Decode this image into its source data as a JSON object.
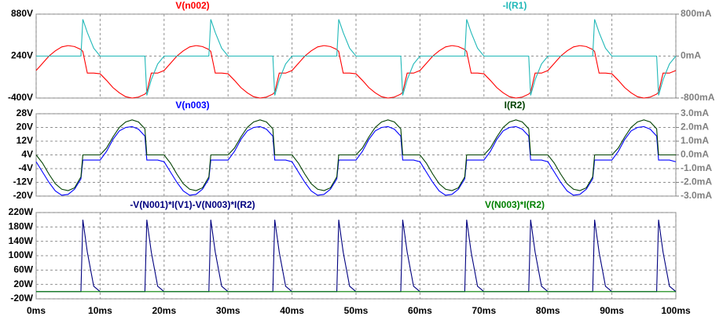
{
  "chart_data": [
    {
      "type": "line",
      "x": [
        0,
        1,
        2,
        3,
        4,
        5,
        6,
        7,
        7.3,
        8,
        9,
        10,
        11,
        12,
        13,
        14,
        15,
        16,
        17,
        17.3,
        18,
        19,
        20,
        21,
        22,
        23,
        24,
        25,
        26,
        27,
        27.3,
        28,
        29,
        30,
        31,
        32,
        33,
        34,
        35,
        36,
        37,
        37.3,
        38,
        39,
        40,
        41,
        42,
        43,
        44,
        45,
        46,
        47,
        47.3,
        48,
        49,
        50,
        51,
        52,
        53,
        54,
        55,
        56,
        57,
        57.3,
        58,
        59,
        60,
        61,
        62,
        63,
        64,
        65,
        66,
        67,
        67.3,
        68,
        69,
        70,
        71,
        72,
        73,
        74,
        75,
        76,
        77,
        77.3,
        78,
        79,
        80,
        81,
        82,
        83,
        84,
        85,
        86,
        87,
        87.3,
        88,
        89,
        90,
        91,
        92,
        93,
        94,
        95,
        96,
        97,
        97.3,
        98,
        99,
        100
      ],
      "series": [
        {
          "name": "V(n002)",
          "color": "#ff0000",
          "values": [
            20,
            130,
            240,
            320,
            380,
            400,
            385,
            340,
            310,
            -20,
            -20,
            -30,
            -130,
            -240,
            -320,
            -380,
            -400,
            -385,
            -340,
            -310,
            -20,
            -20,
            20,
            130,
            240,
            320,
            380,
            400,
            385,
            340,
            310,
            -20,
            -20,
            -30,
            -130,
            -240,
            -320,
            -380,
            -400,
            -385,
            -340,
            -310,
            -20,
            -20,
            20,
            130,
            240,
            320,
            380,
            400,
            385,
            340,
            310,
            -20,
            -20,
            -30,
            -130,
            -240,
            -320,
            -380,
            -400,
            -385,
            -340,
            -310,
            -20,
            -20,
            20,
            130,
            240,
            320,
            380,
            400,
            385,
            340,
            310,
            -20,
            -20,
            -30,
            -130,
            -240,
            -320,
            -380,
            -400,
            -385,
            -340,
            -310,
            -20,
            -20,
            20,
            130,
            240,
            320,
            380,
            400,
            385,
            340,
            310,
            -20,
            -20,
            -30,
            -130,
            -240,
            -320,
            -380,
            -400,
            -385,
            -340,
            -310,
            -20,
            -20,
            20
          ]
        },
        {
          "name": "-I(R1)",
          "color": "#20b8b8",
          "axis": "y2",
          "values": [
            0,
            0,
            0,
            0,
            0,
            0,
            0,
            0,
            700,
            450,
            150,
            0,
            0,
            0,
            0,
            0,
            0,
            0,
            0,
            -750,
            -450,
            -150,
            0,
            0,
            0,
            0,
            0,
            0,
            0,
            0,
            700,
            450,
            150,
            0,
            0,
            0,
            0,
            0,
            0,
            0,
            0,
            -750,
            -450,
            -150,
            0,
            0,
            0,
            0,
            0,
            0,
            0,
            0,
            700,
            450,
            150,
            0,
            0,
            0,
            0,
            0,
            0,
            0,
            0,
            -750,
            -450,
            -150,
            0,
            0,
            0,
            0,
            0,
            0,
            0,
            0,
            700,
            450,
            150,
            0,
            0,
            0,
            0,
            0,
            0,
            0,
            0,
            -750,
            -450,
            -150,
            0,
            0,
            0,
            0,
            0,
            0,
            0,
            0,
            700,
            450,
            150,
            0,
            0,
            0,
            0,
            0,
            0,
            0,
            0,
            -750,
            -450,
            -150,
            0
          ]
        }
      ],
      "ylim": [
        -400,
        880
      ],
      "yticks": [
        {
          "value": 880,
          "label": "880V"
        },
        {
          "value": 240,
          "label": "240V"
        },
        {
          "value": -400,
          "label": "-400V"
        }
      ],
      "y2lim": [
        -800,
        800
      ],
      "y2ticks": [
        {
          "value": 800,
          "label": "800mA"
        },
        {
          "value": 0,
          "label": "0mA"
        },
        {
          "value": -800,
          "label": "-800mA"
        }
      ],
      "grid": true
    },
    {
      "type": "line",
      "x": [
        0,
        1,
        2,
        3,
        4,
        5,
        6,
        7,
        7.3,
        8,
        9,
        10,
        11,
        12,
        13,
        14,
        15,
        16,
        17,
        17.3,
        18,
        19,
        20,
        21,
        22,
        23,
        24,
        25,
        26,
        27,
        27.3,
        28,
        29,
        30,
        31,
        32,
        33,
        34,
        35,
        36,
        37,
        37.3,
        38,
        39,
        40,
        41,
        42,
        43,
        44,
        45,
        46,
        47,
        47.3,
        48,
        49,
        50,
        51,
        52,
        53,
        54,
        55,
        56,
        57,
        57.3,
        58,
        59,
        60,
        61,
        62,
        63,
        64,
        65,
        66,
        67,
        67.3,
        68,
        69,
        70,
        71,
        72,
        73,
        74,
        75,
        76,
        77,
        77.3,
        78,
        79,
        80,
        81,
        82,
        83,
        84,
        85,
        86,
        87,
        87.3,
        88,
        89,
        90,
        91,
        92,
        93,
        94,
        95,
        96,
        97,
        97.3,
        98,
        99,
        100
      ],
      "series": [
        {
          "name": "V(n003)",
          "color": "#0000ff",
          "values": [
            0,
            -6,
            -12,
            -17,
            -19.5,
            -19,
            -16,
            -10,
            1,
            1,
            1,
            1,
            6,
            13,
            18,
            20,
            20.5,
            19,
            15,
            1,
            1,
            1,
            0,
            -6,
            -12,
            -17,
            -19.5,
            -19,
            -16,
            -10,
            1,
            1,
            1,
            1,
            6,
            13,
            18,
            20,
            20.5,
            19,
            15,
            1,
            1,
            1,
            0,
            -6,
            -12,
            -17,
            -19.5,
            -19,
            -16,
            -10,
            1,
            1,
            1,
            1,
            6,
            13,
            18,
            20,
            20.5,
            19,
            15,
            1,
            1,
            1,
            0,
            -6,
            -12,
            -17,
            -19.5,
            -19,
            -16,
            -10,
            1,
            1,
            1,
            1,
            6,
            13,
            18,
            20,
            20.5,
            19,
            15,
            1,
            1,
            1,
            0,
            -6,
            -12,
            -17,
            -19.5,
            -19,
            -16,
            -10,
            1,
            1,
            1,
            1,
            6,
            13,
            18,
            20,
            20.5,
            19,
            15,
            1,
            1,
            1,
            0
          ]
        },
        {
          "name": "I(R2)",
          "color": "#004000",
          "axis": "y2",
          "values": [
            0,
            -0.6,
            -1.4,
            -2.1,
            -2.5,
            -2.6,
            -2.4,
            -1.6,
            0,
            0,
            0,
            0,
            0.5,
            1.3,
            2,
            2.4,
            2.55,
            2.4,
            1.9,
            0,
            0,
            0,
            0,
            -0.6,
            -1.4,
            -2.1,
            -2.5,
            -2.6,
            -2.4,
            -1.6,
            0,
            0,
            0,
            0,
            0.5,
            1.3,
            2,
            2.4,
            2.55,
            2.4,
            1.9,
            0,
            0,
            0,
            0,
            -0.6,
            -1.4,
            -2.1,
            -2.5,
            -2.6,
            -2.4,
            -1.6,
            0,
            0,
            0,
            0,
            0.5,
            1.3,
            2,
            2.4,
            2.55,
            2.4,
            1.9,
            0,
            0,
            0,
            0,
            -0.6,
            -1.4,
            -2.1,
            -2.5,
            -2.6,
            -2.4,
            -1.6,
            0,
            0,
            0,
            0,
            0.5,
            1.3,
            2,
            2.4,
            2.55,
            2.4,
            1.9,
            0,
            0,
            0,
            0,
            -0.6,
            -1.4,
            -2.1,
            -2.5,
            -2.6,
            -2.4,
            -1.6,
            0,
            0,
            0,
            0,
            0.5,
            1.3,
            2,
            2.4,
            2.55,
            2.4,
            1.9,
            0,
            0,
            0,
            0
          ]
        }
      ],
      "ylim": [
        -20,
        28
      ],
      "yticks": [
        {
          "value": 28,
          "label": "28V"
        },
        {
          "value": 20,
          "label": "20V"
        },
        {
          "value": 12,
          "label": "12V"
        },
        {
          "value": 4,
          "label": "4V"
        },
        {
          "value": -4,
          "label": "-4V"
        },
        {
          "value": -12,
          "label": "-12V"
        },
        {
          "value": -20,
          "label": "-20V"
        }
      ],
      "y2lim": [
        -3,
        3
      ],
      "y2ticks": [
        {
          "value": 3,
          "label": "3.0mA"
        },
        {
          "value": 2,
          "label": "2.0mA"
        },
        {
          "value": 1,
          "label": "1.0mA"
        },
        {
          "value": 0,
          "label": "0.0mA"
        },
        {
          "value": -1,
          "label": "-1.0mA"
        },
        {
          "value": -2,
          "label": "-2.0mA"
        },
        {
          "value": -3,
          "label": "-3.0mA"
        }
      ],
      "grid": true
    },
    {
      "type": "line",
      "x": [
        0,
        1,
        2,
        3,
        4,
        5,
        6,
        7,
        7.3,
        8,
        9,
        10,
        11,
        12,
        13,
        14,
        15,
        16,
        17,
        17.3,
        18,
        19,
        20,
        21,
        22,
        23,
        24,
        25,
        26,
        27,
        27.3,
        28,
        29,
        30,
        31,
        32,
        33,
        34,
        35,
        36,
        37,
        37.3,
        38,
        39,
        40,
        41,
        42,
        43,
        44,
        45,
        46,
        47,
        47.3,
        48,
        49,
        50,
        51,
        52,
        53,
        54,
        55,
        56,
        57,
        57.3,
        58,
        59,
        60,
        61,
        62,
        63,
        64,
        65,
        66,
        67,
        67.3,
        68,
        69,
        70,
        71,
        72,
        73,
        74,
        75,
        76,
        77,
        77.3,
        78,
        79,
        80,
        81,
        82,
        83,
        84,
        85,
        86,
        87,
        87.3,
        88,
        89,
        90,
        91,
        92,
        93,
        94,
        95,
        96,
        97,
        97.3,
        98,
        99,
        100
      ],
      "series": [
        {
          "name": "-V(N001)*I(V1)-V(N003)*I(R2)",
          "color": "#00007f",
          "values": [
            0,
            0,
            0,
            0,
            0,
            0,
            0,
            0,
            200,
            110,
            15,
            0,
            0,
            0,
            0,
            0,
            0,
            0,
            0,
            200,
            110,
            15,
            0,
            0,
            0,
            0,
            0,
            0,
            0,
            0,
            200,
            110,
            15,
            0,
            0,
            0,
            0,
            0,
            0,
            0,
            0,
            200,
            110,
            15,
            0,
            0,
            0,
            0,
            0,
            0,
            0,
            0,
            200,
            110,
            15,
            0,
            0,
            0,
            0,
            0,
            0,
            0,
            0,
            200,
            110,
            15,
            0,
            0,
            0,
            0,
            0,
            0,
            0,
            0,
            200,
            110,
            15,
            0,
            0,
            0,
            0,
            0,
            0,
            0,
            0,
            200,
            110,
            15,
            0,
            0,
            0,
            0,
            0,
            0,
            0,
            0,
            200,
            110,
            15,
            0,
            0,
            0,
            0,
            0,
            0,
            0,
            0,
            200,
            110,
            15,
            0
          ]
        },
        {
          "name": "V(N003)*I(R2)",
          "color": "#008000",
          "values": [
            0,
            0,
            0,
            0,
            0.05,
            0.05,
            0,
            0,
            0,
            0,
            0,
            0,
            0,
            0,
            0,
            0.05,
            0.05,
            0,
            0,
            0,
            0,
            0,
            0,
            0,
            0,
            0,
            0.05,
            0.05,
            0,
            0,
            0,
            0,
            0,
            0,
            0,
            0,
            0,
            0.05,
            0.05,
            0,
            0,
            0,
            0,
            0,
            0,
            0,
            0,
            0,
            0.05,
            0.05,
            0,
            0,
            0,
            0,
            0,
            0,
            0,
            0,
            0,
            0.05,
            0.05,
            0,
            0,
            0,
            0,
            0,
            0,
            0,
            0,
            0,
            0.05,
            0.05,
            0,
            0,
            0,
            0,
            0,
            0,
            0,
            0,
            0,
            0.05,
            0.05,
            0,
            0,
            0,
            0,
            0,
            0,
            0,
            0,
            0,
            0.05,
            0.05,
            0,
            0,
            0,
            0,
            0,
            0,
            0,
            0,
            0,
            0.05,
            0.05,
            0,
            0,
            0,
            0,
            0,
            0
          ]
        }
      ],
      "xlim": [
        0,
        100
      ],
      "xticks": [
        {
          "value": 0,
          "label": "0ms"
        },
        {
          "value": 10,
          "label": "10ms"
        },
        {
          "value": 20,
          "label": "20ms"
        },
        {
          "value": 30,
          "label": "30ms"
        },
        {
          "value": 40,
          "label": "40ms"
        },
        {
          "value": 50,
          "label": "50ms"
        },
        {
          "value": 60,
          "label": "60ms"
        },
        {
          "value": 70,
          "label": "70ms"
        },
        {
          "value": 80,
          "label": "80ms"
        },
        {
          "value": 90,
          "label": "90ms"
        },
        {
          "value": 100,
          "label": "100ms"
        }
      ],
      "ylim": [
        -20,
        220
      ],
      "yticks": [
        {
          "value": 220,
          "label": "220W"
        },
        {
          "value": 180,
          "label": "180W"
        },
        {
          "value": 140,
          "label": "140W"
        },
        {
          "value": 100,
          "label": "100W"
        },
        {
          "value": 60,
          "label": "60W"
        },
        {
          "value": 20,
          "label": "20W"
        },
        {
          "value": -20,
          "label": "-20W"
        }
      ],
      "grid": true
    }
  ]
}
